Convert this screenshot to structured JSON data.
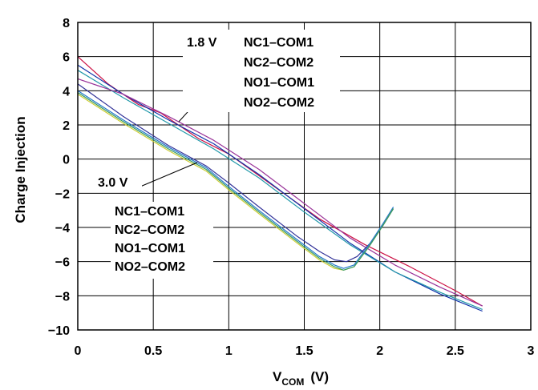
{
  "chart_data": {
    "type": "line",
    "xlabel": "V",
    "xlabel_sub": "COM",
    "xlabel_unit": "(V)",
    "ylabel": "Charge Injection",
    "xlim": [
      0,
      3
    ],
    "ylim": [
      -10,
      8
    ],
    "xticks": [
      0,
      0.5,
      1,
      1.5,
      2,
      2.5,
      3
    ],
    "xtick_labels": [
      "0",
      "0.5",
      "1",
      "1.5",
      "2",
      "2.5",
      "3"
    ],
    "yticks": [
      8,
      6,
      4,
      2,
      0,
      -2,
      -4,
      -6,
      -8,
      -10
    ],
    "ytick_labels": [
      "8",
      "6",
      "4",
      "2",
      "0",
      "−2",
      "−4",
      "−6",
      "−8",
      "−10"
    ],
    "grid": true,
    "annotations": {
      "v18": {
        "voltage": "1.8 V",
        "channels": [
          "NC1–COM1",
          "NC2–COM2",
          "NO1–COM1",
          "NO2–COM2"
        ]
      },
      "v30": {
        "voltage": "3.0 V",
        "channels": [
          "NC1–COM1",
          "NC2–COM2",
          "NO1–COM1",
          "NO2–COM2"
        ]
      }
    },
    "series": [
      {
        "color": "#cc1144",
        "x": [
          0,
          0.2,
          0.4,
          0.55,
          0.8,
          1.0,
          1.3,
          1.6,
          1.9,
          2.2,
          2.5,
          2.68
        ],
        "y": [
          6.0,
          4.4,
          3.2,
          2.7,
          1.2,
          0.3,
          -1.6,
          -3.5,
          -5.0,
          -6.3,
          -7.7,
          -8.6
        ]
      },
      {
        "color": "#1133aa",
        "x": [
          0,
          0.3,
          0.6,
          0.9,
          1.2,
          1.5,
          1.8,
          2.1,
          2.4,
          2.68
        ],
        "y": [
          5.5,
          3.8,
          2.3,
          0.9,
          -0.9,
          -2.9,
          -4.9,
          -6.6,
          -7.9,
          -8.9
        ]
      },
      {
        "color": "#2299aa",
        "x": [
          0,
          0.3,
          0.6,
          0.9,
          1.2,
          1.5,
          1.8,
          2.1,
          2.4,
          2.68
        ],
        "y": [
          5.2,
          3.6,
          2.1,
          0.6,
          -1.1,
          -3.1,
          -5.0,
          -6.6,
          -7.8,
          -8.8
        ]
      },
      {
        "color": "#993399",
        "x": [
          0,
          0.3,
          0.6,
          0.9,
          1.2,
          1.5,
          1.8,
          2.1,
          2.4,
          2.68
        ],
        "y": [
          4.7,
          3.8,
          2.5,
          1.1,
          -0.6,
          -2.6,
          -4.6,
          -6.2,
          -7.5,
          -8.6
        ]
      },
      {
        "color": "#333399",
        "x": [
          0,
          0.3,
          0.6,
          0.85,
          1.0,
          1.2,
          1.45,
          1.6,
          1.7,
          1.78,
          1.85,
          1.95,
          2.02,
          2.09
        ],
        "y": [
          4.4,
          2.5,
          0.8,
          -0.4,
          -1.4,
          -2.8,
          -4.5,
          -5.4,
          -5.9,
          -6.0,
          -5.7,
          -4.8,
          -3.9,
          -2.9
        ]
      },
      {
        "color": "#2277cc",
        "x": [
          0,
          0.3,
          0.6,
          0.85,
          1.0,
          1.2,
          1.45,
          1.6,
          1.7,
          1.76,
          1.83,
          1.93,
          2.02,
          2.09
        ],
        "y": [
          4.0,
          2.3,
          0.7,
          -0.5,
          -1.6,
          -3.0,
          -4.7,
          -5.7,
          -6.2,
          -6.4,
          -6.2,
          -5.0,
          -3.8,
          -2.8
        ]
      },
      {
        "color": "#cccc33",
        "x": [
          0,
          0.3,
          0.6,
          0.85,
          1.0,
          1.2,
          1.45,
          1.6,
          1.7,
          1.76,
          1.83,
          1.93,
          2.02,
          2.09
        ],
        "y": [
          3.8,
          2.1,
          0.5,
          -0.7,
          -1.8,
          -3.2,
          -4.9,
          -5.9,
          -6.4,
          -6.5,
          -6.3,
          -5.1,
          -3.9,
          -2.9
        ]
      },
      {
        "color": "#339966",
        "x": [
          0,
          0.3,
          0.6,
          0.85,
          1.0,
          1.2,
          1.45,
          1.6,
          1.7,
          1.76,
          1.83,
          1.93,
          2.02,
          2.09
        ],
        "y": [
          3.9,
          2.2,
          0.6,
          -0.6,
          -1.7,
          -3.1,
          -4.8,
          -5.8,
          -6.3,
          -6.5,
          -6.3,
          -5.1,
          -3.9,
          -2.9
        ]
      }
    ]
  }
}
